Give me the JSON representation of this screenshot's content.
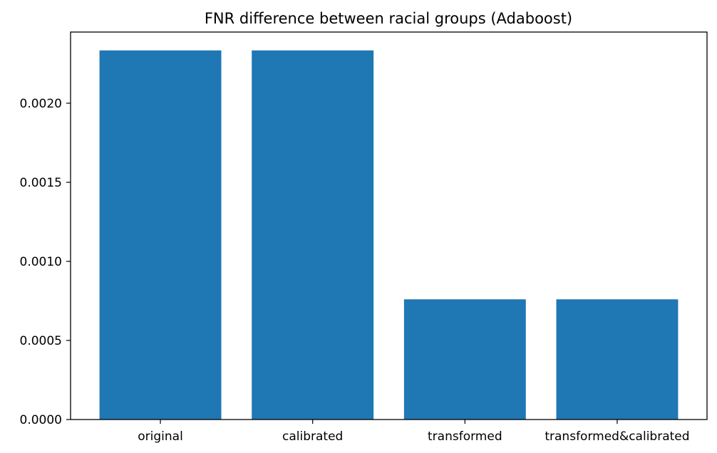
{
  "chart_data": {
    "type": "bar",
    "title": "FNR difference between racial groups (Adaboost)",
    "xlabel": "",
    "ylabel": "",
    "categories": [
      "original",
      "calibrated",
      "transformed",
      "transformed&calibrated"
    ],
    "values": [
      0.002334,
      0.002334,
      0.00076,
      0.00076
    ],
    "ylim": [
      0,
      0.00245
    ],
    "yticks": [
      0.0,
      0.0005,
      0.001,
      0.0015,
      0.002
    ],
    "ytick_labels": [
      "0.0000",
      "0.0005",
      "0.0010",
      "0.0015",
      "0.0020"
    ],
    "bar_color": "#1f77b4",
    "grid": false,
    "legend": "none"
  }
}
